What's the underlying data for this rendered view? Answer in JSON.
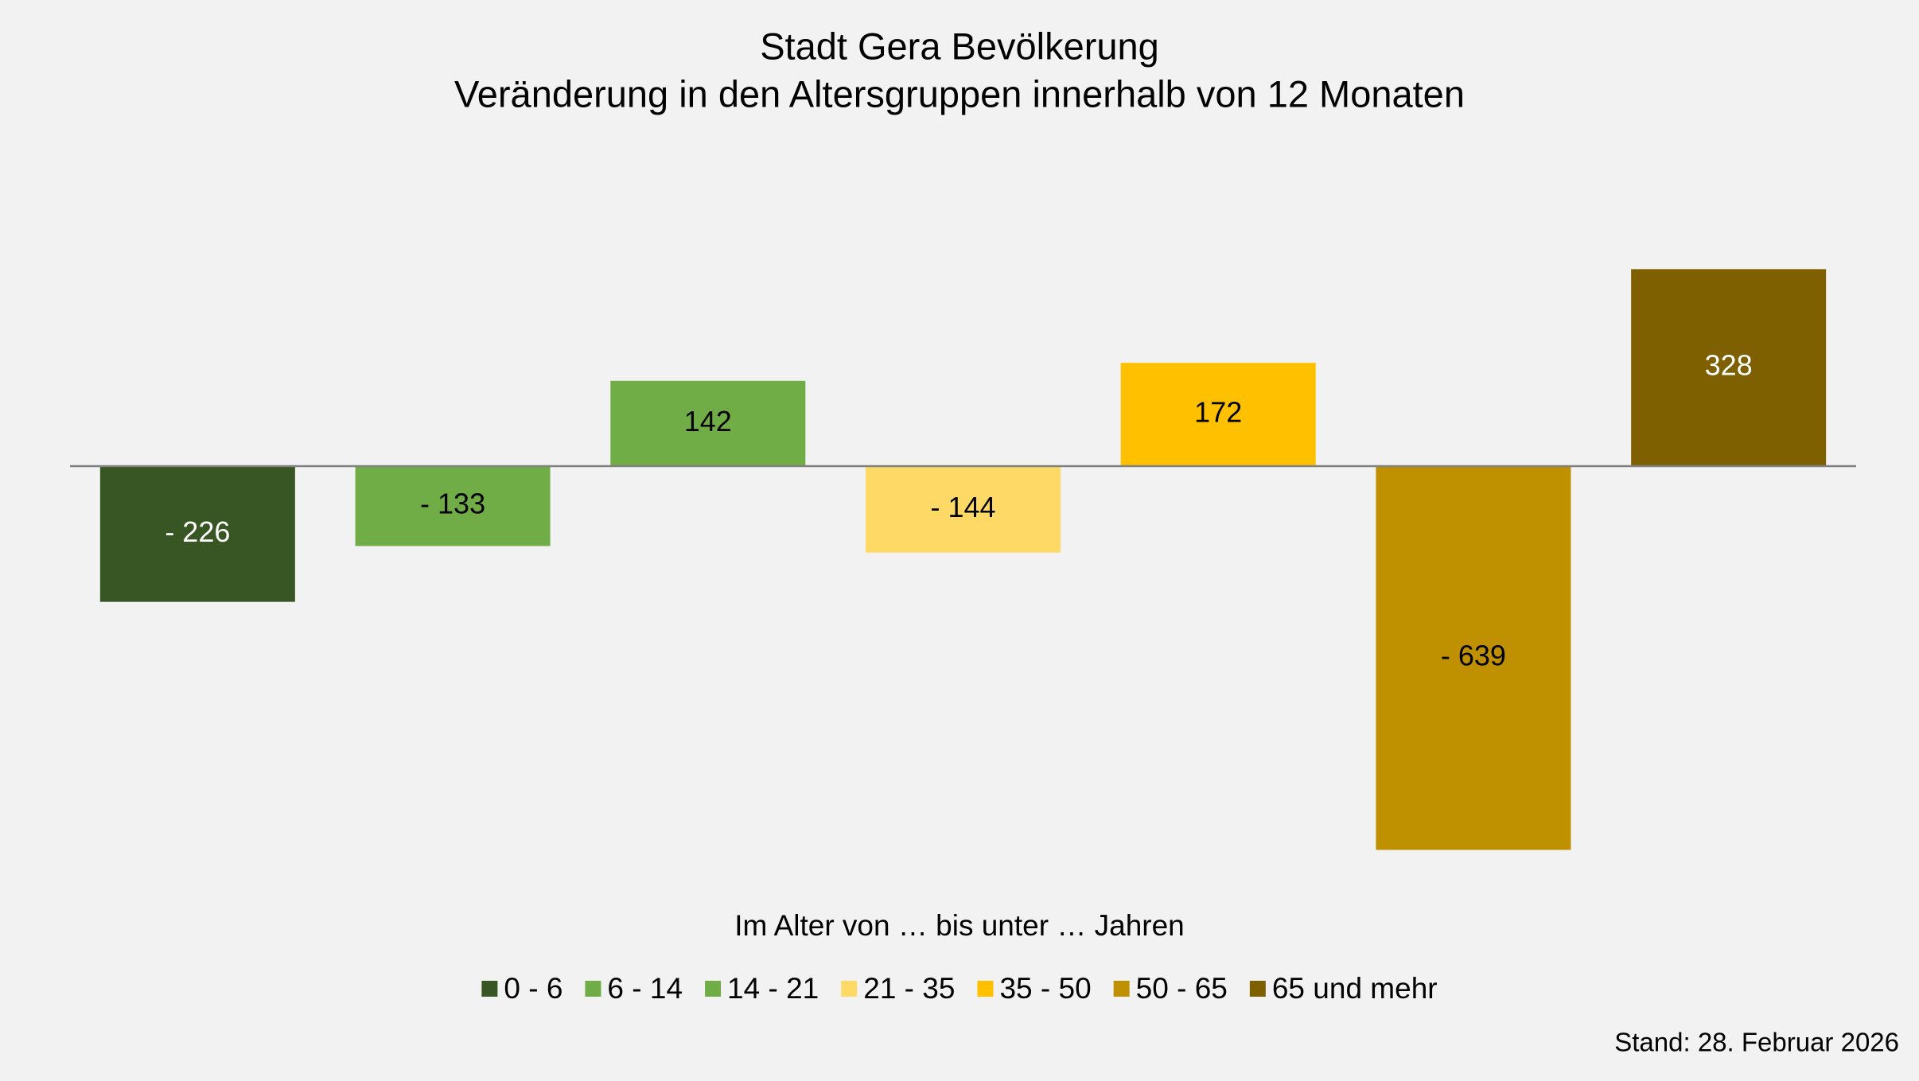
{
  "chart_data": {
    "type": "bar",
    "title": "Stadt Gera Bevölkerung",
    "subtitle": "Veränderung in den Altersgruppen innerhalb von 12 Monaten",
    "legend_title": "Im Alter von … bis unter … Jahren",
    "note": "Stand: 28. Februar 2026",
    "categories": [
      "0 - 6",
      "6 - 14",
      "14 - 21",
      "21 - 35",
      "35 - 50",
      "50 - 65",
      "65 und mehr"
    ],
    "values": [
      -226,
      -133,
      142,
      -144,
      172,
      -639,
      328
    ],
    "value_labels": [
      "- 226",
      "- 133",
      "142",
      "- 144",
      "172",
      "- 639",
      "328"
    ],
    "colors": [
      "#375623",
      "#70ad47",
      "#70ad47",
      "#ffd966",
      "#ffc000",
      "#bf9000",
      "#7f6000"
    ],
    "label_colors": [
      "#ffffff",
      "#000000",
      "#000000",
      "#000000",
      "#000000",
      "#000000",
      "#ffffff"
    ],
    "legend": "bottom"
  }
}
